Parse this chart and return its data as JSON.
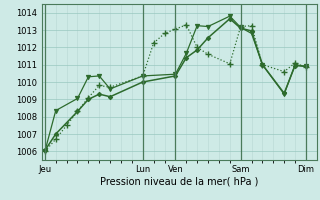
{
  "background_color": "#ceeae6",
  "grid_color_minor": "#b8d8d4",
  "grid_color_major": "#9ac8c0",
  "line_color": "#2d6b2d",
  "sep_color": "#4a7a5a",
  "x_tick_labels": [
    "Jeu",
    "Lun",
    "Ven",
    "Sam",
    "Dim"
  ],
  "x_tick_positions": [
    0,
    9,
    12,
    18,
    24
  ],
  "xlabel": "Pression niveau de la mer( hPa )",
  "ylim": [
    1005.5,
    1014.5
  ],
  "yticks": [
    1006,
    1007,
    1008,
    1009,
    1010,
    1011,
    1012,
    1013,
    1014
  ],
  "xlim": [
    -0.3,
    25
  ],
  "series1": {
    "x": [
      0,
      1,
      2,
      3,
      4,
      5,
      6,
      9,
      10,
      11,
      12,
      13,
      14,
      15,
      17,
      18,
      19,
      20,
      22,
      23,
      24
    ],
    "y": [
      1006.0,
      1006.7,
      1007.5,
      1008.3,
      1009.1,
      1009.8,
      1009.7,
      1010.35,
      1012.25,
      1012.8,
      1013.05,
      1013.3,
      1012.0,
      1011.6,
      1011.05,
      1013.2,
      1013.25,
      1011.0,
      1010.6,
      1011.1,
      1010.85
    ],
    "style": ":",
    "marker": "+",
    "markersize": 4.5,
    "linewidth": 0.9,
    "markeredgewidth": 1.0
  },
  "series2": {
    "x": [
      0,
      1,
      3,
      4,
      5,
      6,
      9,
      12,
      13,
      14,
      15,
      17,
      18,
      19,
      20,
      22,
      23,
      24
    ],
    "y": [
      1006.05,
      1007.0,
      1008.3,
      1009.0,
      1009.3,
      1009.15,
      1010.0,
      1010.35,
      1011.4,
      1011.85,
      1012.55,
      1013.65,
      1013.1,
      1012.95,
      1011.0,
      1009.35,
      1010.95,
      1010.9
    ],
    "style": "-",
    "marker": "D",
    "markersize": 2.2,
    "linewidth": 1.1,
    "markeredgewidth": 0.8
  },
  "series3": {
    "x": [
      0,
      1,
      3,
      4,
      5,
      6,
      9,
      12,
      13,
      14,
      15,
      17,
      18,
      19,
      20,
      22,
      23,
      24
    ],
    "y": [
      1006.0,
      1008.35,
      1009.05,
      1010.3,
      1010.35,
      1009.6,
      1010.35,
      1010.45,
      1011.65,
      1013.25,
      1013.2,
      1013.8,
      1013.15,
      1012.8,
      1011.0,
      1009.3,
      1011.0,
      1010.9
    ],
    "style": "-",
    "marker": "v",
    "markersize": 3.0,
    "linewidth": 0.9,
    "markeredgewidth": 0.8
  }
}
